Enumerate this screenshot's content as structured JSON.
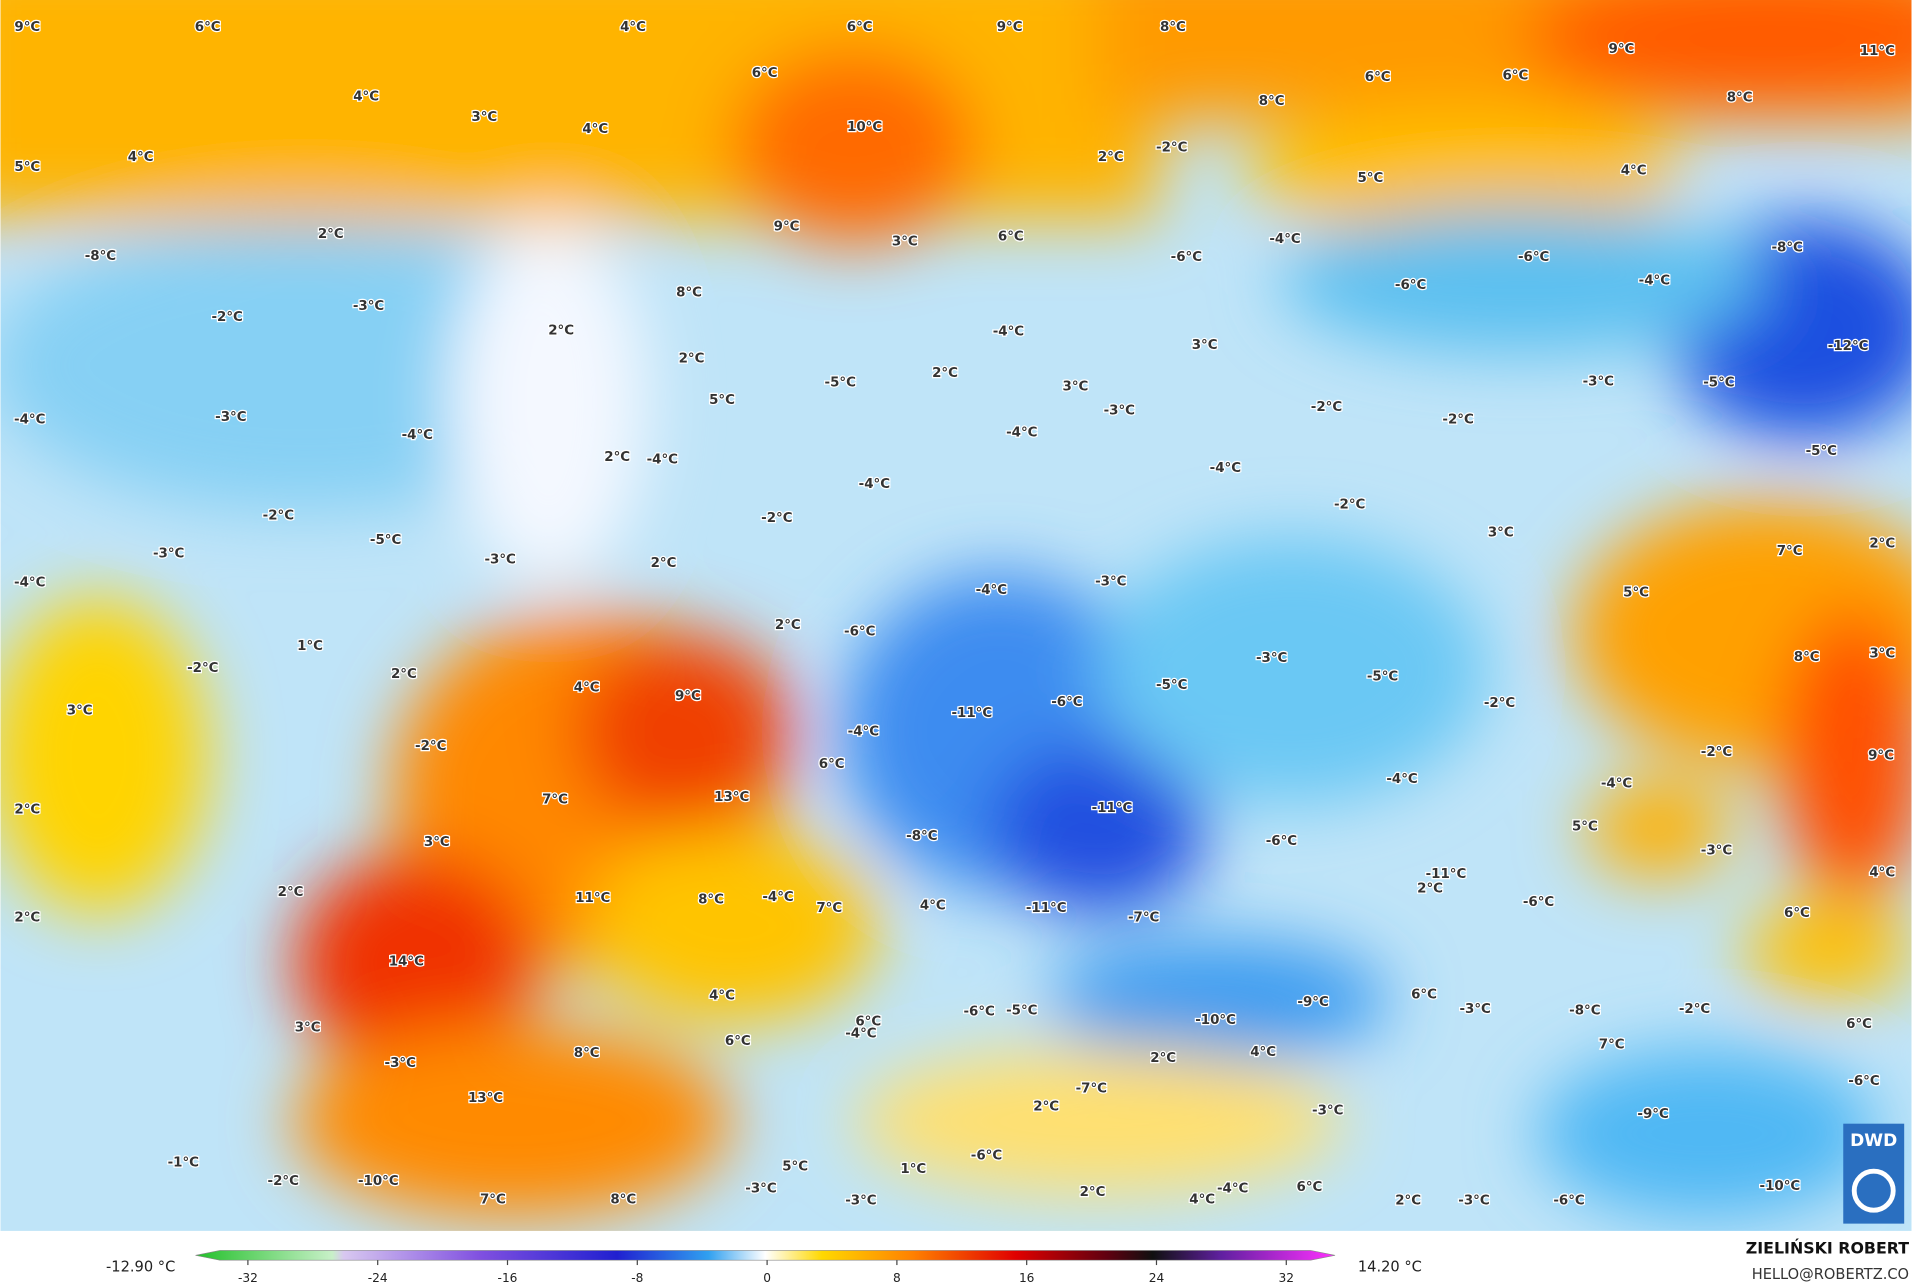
{
  "map": {
    "labels": [
      "9°C",
      "6°C",
      "4°C",
      "6°C",
      "9°C",
      "8°C",
      "9°C",
      "11°C",
      "6°C",
      "6°C",
      "6°C",
      "4°C",
      "3°C",
      "4°C",
      "10°C",
      "8°C",
      "8°C",
      "5°C",
      "4°C",
      "2°C",
      "-2°C",
      "5°C",
      "4°C",
      "9°C",
      "2°C",
      "3°C",
      "6°C",
      "-8°C",
      "-4°C",
      "-6°C",
      "-6°C",
      "-8°C",
      "-6°C",
      "-4°C",
      "8°C",
      "-3°C",
      "-2°C",
      "2°C",
      "-4°C",
      "3°C",
      "-12°C",
      "2°C",
      "2°C",
      "-5°C",
      "3°C",
      "-3°C",
      "-5°C",
      "5°C",
      "-3°C",
      "-4°C",
      "-3°C",
      "-2°C",
      "-2°C",
      "-4°C",
      "-4°C",
      "2°C",
      "-4°C",
      "-5°C",
      "-4°C",
      "-4°C",
      "-2°C",
      "-2°C",
      "-2°C",
      "-5°C",
      "3°C",
      "2°C",
      "7°C",
      "-3°C",
      "-3°C",
      "2°C",
      "-4°C",
      "-4°C",
      "-3°C",
      "5°C",
      "1°C",
      "2°C",
      "-6°C",
      "-3°C",
      "-5°C",
      "-2°C",
      "2°C",
      "4°C",
      "8°C",
      "3°C",
      "-5°C",
      "9°C",
      "-6°C",
      "-2°C",
      "3°C",
      "-11°C",
      "-4°C",
      "-2°C",
      "-2°C",
      "6°C",
      "-4°C",
      "9°C",
      "-4°C",
      "13°C",
      "7°C",
      "2°C",
      "-11°C",
      "5°C",
      "-6°C",
      "-8°C",
      "3°C",
      "-3°C",
      "4°C",
      "-11°C",
      "2°C",
      "2°C",
      "11°C",
      "8°C",
      "-4°C",
      "7°C",
      "4°C",
      "-11°C",
      "-6°C",
      "-7°C",
      "2°C",
      "6°C",
      "14°C",
      "4°C",
      "-9°C",
      "6°C",
      "-3°C",
      "-8°C",
      "-2°C",
      "-6°C",
      "-5°C",
      "-10°C",
      "6°C",
      "3°C",
      "6°C",
      "-4°C",
      "7°C",
      "6°C",
      "8°C",
      "4°C",
      "2°C",
      "-3°C",
      "-6°C",
      "-7°C",
      "-3°C",
      "-9°C",
      "13°C",
      "2°C",
      "-1°C",
      "-6°C",
      "1°C",
      "5°C",
      "-2°C",
      "-10°C",
      "-3°C",
      "-10°C",
      "2°C",
      "7°C",
      "8°C",
      "-3°C",
      "4°C",
      "-4°C",
      "6°C",
      "2°C",
      "-3°C",
      "-6°C"
    ]
  },
  "colorbar": {
    "min_label": "-12.90 °C",
    "max_label": "14.20 °C",
    "range": [
      -32,
      32
    ],
    "ticks": [
      -32,
      -24,
      -16,
      -8,
      0,
      8,
      16,
      24,
      32
    ]
  },
  "credits": {
    "author": "ZIELIŃSKI ROBERT",
    "contact": "HELLO@ROBERTZ.CO",
    "logo": "DWD"
  }
}
